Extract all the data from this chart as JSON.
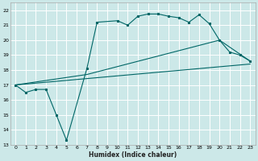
{
  "xlabel": "Humidex (Indice chaleur)",
  "bg_color": "#cce8e8",
  "grid_color": "#ffffff",
  "line_color": "#006666",
  "xlim": [
    -0.5,
    23.5
  ],
  "ylim": [
    13,
    22.5
  ],
  "yticks": [
    13,
    14,
    15,
    16,
    17,
    18,
    19,
    20,
    21,
    22
  ],
  "xticks": [
    0,
    1,
    2,
    3,
    4,
    5,
    6,
    7,
    8,
    9,
    10,
    11,
    12,
    13,
    14,
    15,
    16,
    17,
    18,
    19,
    20,
    21,
    22,
    23
  ],
  "series1_x": [
    0,
    1,
    2,
    3,
    4,
    5,
    7,
    8,
    10,
    11,
    12,
    13,
    14,
    15,
    16,
    17,
    18,
    19,
    20,
    21,
    22,
    23
  ],
  "series1_y": [
    17.0,
    16.5,
    16.7,
    16.7,
    15.0,
    13.3,
    18.1,
    21.2,
    21.3,
    21.0,
    21.6,
    21.75,
    21.75,
    21.6,
    21.5,
    21.2,
    21.7,
    21.1,
    20.0,
    19.2,
    19.0,
    18.6
  ],
  "series2_x": [
    0,
    7,
    20,
    23
  ],
  "series2_y": [
    17.0,
    17.7,
    20.0,
    18.6
  ],
  "series3_x": [
    0,
    23
  ],
  "series3_y": [
    17.0,
    18.4
  ]
}
